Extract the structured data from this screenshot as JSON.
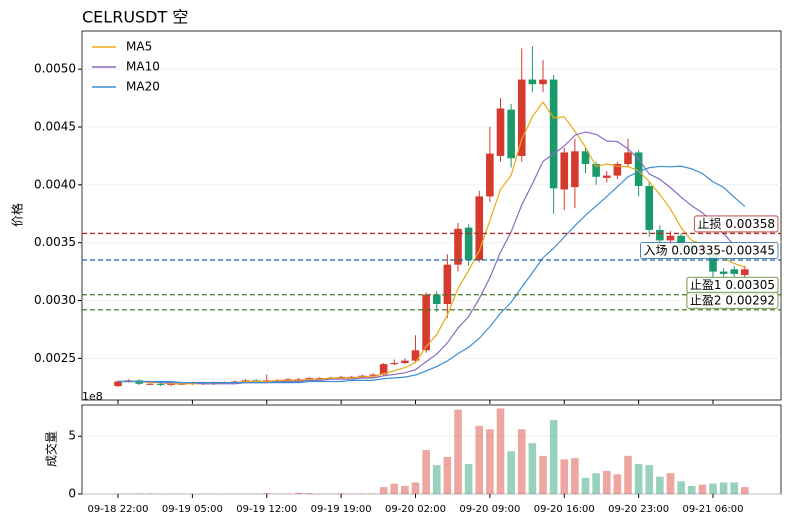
{
  "chart_data": {
    "type": "candlestick",
    "title": "CELRUSDT  空",
    "ylabel": "价格",
    "categories": [
      "09-18 22:00",
      null,
      null,
      null,
      null,
      null,
      null,
      "09-19 05:00",
      null,
      null,
      null,
      null,
      null,
      null,
      "09-19 12:00",
      null,
      null,
      null,
      null,
      null,
      null,
      "09-19 19:00",
      null,
      null,
      null,
      null,
      null,
      null,
      "09-20 02:00",
      null,
      null,
      null,
      null,
      null,
      null,
      "09-20 09:00",
      null,
      null,
      null,
      null,
      null,
      null,
      "09-20 16:00",
      null,
      null,
      null,
      null,
      null,
      null,
      "09-20 23:00",
      null,
      null,
      null,
      null,
      null,
      null,
      "09-21 06:00",
      null,
      null,
      null
    ],
    "open": [
      0.00226,
      0.0023,
      0.00231,
      0.00228,
      0.00228,
      0.00227,
      0.00228,
      0.00228,
      0.00229,
      0.00228,
      0.00229,
      0.00229,
      0.0023,
      0.00231,
      0.0023,
      0.00231,
      0.00231,
      0.00232,
      0.00232,
      0.00233,
      0.00233,
      0.00233,
      0.00234,
      0.00234,
      0.00235,
      0.00236,
      0.00245,
      0.00246,
      0.00248,
      0.00257,
      0.00305,
      0.00297,
      0.00331,
      0.00363,
      0.00335,
      0.0039,
      0.00425,
      0.00465,
      0.00425,
      0.00491,
      0.00487,
      0.00491,
      0.00396,
      0.00398,
      0.00429,
      0.00418,
      0.00406,
      0.00408,
      0.00418,
      0.00428,
      0.00399,
      0.00361,
      0.00352,
      0.00356,
      0.00347,
      0.00343,
      0.0034,
      0.00325,
      0.00327,
      0.00322
    ],
    "high": [
      0.00231,
      0.00232,
      0.00232,
      0.00229,
      0.00229,
      0.00229,
      0.00229,
      0.0023,
      0.0023,
      0.0023,
      0.0023,
      0.00231,
      0.00232,
      0.00232,
      0.00236,
      0.00232,
      0.00233,
      0.00233,
      0.00234,
      0.00234,
      0.00234,
      0.00235,
      0.00235,
      0.00236,
      0.00237,
      0.00246,
      0.00249,
      0.0025,
      0.0027,
      0.00307,
      0.00308,
      0.0034,
      0.00367,
      0.00366,
      0.00395,
      0.0045,
      0.00475,
      0.0047,
      0.00518,
      0.0052,
      0.00508,
      0.00495,
      0.00432,
      0.0044,
      0.00432,
      0.0042,
      0.00412,
      0.0042,
      0.0044,
      0.0043,
      0.00402,
      0.00365,
      0.0036,
      0.00358,
      0.0035,
      0.0035,
      0.00342,
      0.00328,
      0.0033,
      0.0033
    ],
    "low": [
      0.00225,
      0.00229,
      0.00227,
      0.00227,
      0.00226,
      0.00226,
      0.00227,
      0.00227,
      0.00227,
      0.00227,
      0.00228,
      0.00228,
      0.00229,
      0.00229,
      0.00229,
      0.0023,
      0.0023,
      0.00231,
      0.00231,
      0.00232,
      0.00232,
      0.00232,
      0.00233,
      0.00233,
      0.00234,
      0.00235,
      0.00244,
      0.00245,
      0.00247,
      0.00255,
      0.0029,
      0.00285,
      0.00325,
      0.0033,
      0.00333,
      0.00385,
      0.0042,
      0.00415,
      0.0042,
      0.0048,
      0.0048,
      0.00375,
      0.00378,
      0.0038,
      0.0041,
      0.004,
      0.00402,
      0.00405,
      0.00415,
      0.0039,
      0.00355,
      0.00345,
      0.00348,
      0.0034,
      0.00338,
      0.0034,
      0.0032,
      0.0032,
      0.0032,
      0.0032
    ],
    "close": [
      0.0023,
      0.00231,
      0.00228,
      0.00228,
      0.00227,
      0.00228,
      0.00228,
      0.00229,
      0.00228,
      0.00229,
      0.00229,
      0.0023,
      0.00231,
      0.0023,
      0.00231,
      0.00231,
      0.00232,
      0.00232,
      0.00233,
      0.00233,
      0.00233,
      0.00234,
      0.00234,
      0.00235,
      0.00236,
      0.00245,
      0.00246,
      0.00248,
      0.00257,
      0.00305,
      0.00297,
      0.00331,
      0.00362,
      0.00335,
      0.0039,
      0.00427,
      0.00466,
      0.00423,
      0.00491,
      0.00487,
      0.00491,
      0.00397,
      0.00428,
      0.00429,
      0.00418,
      0.00407,
      0.00408,
      0.00418,
      0.00428,
      0.00399,
      0.00361,
      0.00352,
      0.00356,
      0.00347,
      0.00343,
      0.00346,
      0.00325,
      0.00323,
      0.00323,
      0.00327
    ],
    "up_color": "#d63a2f",
    "down_color": "#1a9a6a",
    "series": [
      {
        "name": "MA5",
        "color": "#e8aa14",
        "values": [
          0.0023,
          0.0023,
          0.0023,
          0.00229,
          0.00229,
          0.00228,
          0.00228,
          0.00228,
          0.00228,
          0.00228,
          0.00229,
          0.00229,
          0.0023,
          0.0023,
          0.0023,
          0.00231,
          0.00231,
          0.00231,
          0.00232,
          0.00232,
          0.00233,
          0.00233,
          0.00233,
          0.00234,
          0.00234,
          0.002368,
          0.002392,
          0.00242,
          0.002464,
          0.002602,
          0.002706,
          0.002876,
          0.003104,
          0.00326,
          0.00343,
          0.00369,
          0.00396,
          0.004082,
          0.004394,
          0.004588,
          0.004716,
          0.004578,
          0.004588,
          0.004464,
          0.004326,
          0.004158,
          0.00418,
          0.00416,
          0.004158,
          0.00412,
          0.004028,
          0.003916,
          0.003792,
          0.00363,
          0.003518,
          0.003488,
          0.003434,
          0.003368,
          0.00332,
          0.003288
        ]
      },
      {
        "name": "MA10",
        "color": "#8a6bc6",
        "values": [
          0.0023,
          0.0023,
          0.0023,
          0.0023,
          0.00229,
          0.00229,
          0.00229,
          0.00229,
          0.00228,
          0.00228,
          0.00228,
          0.00228,
          0.00229,
          0.00229,
          0.00229,
          0.0023,
          0.0023,
          0.0023,
          0.00231,
          0.00231,
          0.00232,
          0.00232,
          0.00232,
          0.00233,
          0.00233,
          0.002349,
          0.002361,
          0.002375,
          0.002402,
          0.002471,
          0.002537,
          0.002634,
          0.002762,
          0.002862,
          0.003016,
          0.003198,
          0.003418,
          0.003593,
          0.003827,
          0.004009,
          0.004203,
          0.004269,
          0.004335,
          0.004429,
          0.004457,
          0.004437,
          0.004379,
          0.004374,
          0.004311,
          0.004223,
          0.004093,
          0.004048,
          0.003976,
          0.003894,
          0.003819,
          0.003758,
          0.003675,
          0.00358,
          0.003475,
          0.003403
        ]
      },
      {
        "name": "MA20",
        "color": "#3b8fd4",
        "values": [
          0.0023,
          0.0023,
          0.0023,
          0.0023,
          0.0023,
          0.0023,
          0.00229,
          0.00229,
          0.00229,
          0.00229,
          0.00229,
          0.00229,
          0.00229,
          0.00229,
          0.00229,
          0.00229,
          0.00229,
          0.00229,
          0.0023,
          0.0023,
          0.0023,
          0.0023,
          0.00231,
          0.00231,
          0.00231,
          0.002325,
          0.002331,
          0.002338,
          0.002356,
          0.002391,
          0.002429,
          0.002477,
          0.002541,
          0.002596,
          0.002673,
          0.002774,
          0.00289,
          0.002984,
          0.003115,
          0.00324,
          0.00337,
          0.003452,
          0.003549,
          0.003646,
          0.003737,
          0.003818,
          0.003899,
          0.003984,
          0.004069,
          0.004116,
          0.004148,
          0.004159,
          0.004156,
          0.004162,
          0.004138,
          0.004098,
          0.004027,
          0.003977,
          0.003893,
          0.003813
        ]
      }
    ],
    "legend": "upper left",
    "ylim": [
      0.00214,
      0.00533
    ],
    "yticks": [
      0.0025,
      {
        "value": 0.003,
        "label": "0.0030"
      },
      0.0035,
      {
        "value": 0.004,
        "label": "0.0040"
      },
      0.0045,
      {
        "value": 0.005,
        "label": "0.0050"
      }
    ],
    "grid": true,
    "hlines": [
      {
        "label": "止损 0.00358",
        "value": 0.00358,
        "color": "#b0302a"
      },
      {
        "label": "入场 0.00335-0.00345",
        "value": 0.00335,
        "color": "#1f66a8"
      },
      {
        "label": "止盈1 0.00305",
        "value": 0.00305,
        "color": "#4a7a22"
      },
      {
        "label": "止盈2 0.00292",
        "value": 0.00292,
        "color": "#4a7a22"
      }
    ],
    "volume": {
      "ylabel": "成交量",
      "offset_label": "1e8",
      "values": [
        0.02,
        0.03,
        0.05,
        0.05,
        0.02,
        0.02,
        0.03,
        0.02,
        0.03,
        0.02,
        0.02,
        0.03,
        0.02,
        0.04,
        0.08,
        0.03,
        0.04,
        0.1,
        0.08,
        0.04,
        0.03,
        0.06,
        0.04,
        0.05,
        0.05,
        0.6,
        0.9,
        0.7,
        1.0,
        3.8,
        2.5,
        3.2,
        7.3,
        2.6,
        5.9,
        5.6,
        7.4,
        3.7,
        5.6,
        4.4,
        3.3,
        6.4,
        3.0,
        3.1,
        1.4,
        1.8,
        2.0,
        1.7,
        3.3,
        2.6,
        2.5,
        1.5,
        1.8,
        1.1,
        0.7,
        0.8,
        0.9,
        1.0,
        1.0,
        0.6
      ],
      "ylim": [
        0,
        7.7
      ],
      "yticks": [
        0,
        5
      ]
    }
  }
}
